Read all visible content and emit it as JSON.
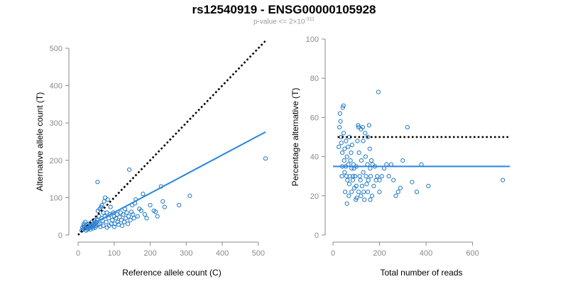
{
  "header": {
    "title": "rs12540919 - ENSG00000105928",
    "subtitle_prefix": "p-value <= 2×10",
    "subtitle_exponent": "-311"
  },
  "colors": {
    "points": "#1f78c8",
    "fit_line": "#2a86e0",
    "reference_line": "#000000",
    "axis": "#8a8a8a"
  },
  "chart_data": [
    {
      "type": "scatter",
      "xlabel": "Reference allele count (C)",
      "ylabel": "Alternative allele count (T)",
      "xlim": [
        0,
        520
      ],
      "ylim": [
        0,
        500
      ],
      "xticks": [
        0,
        100,
        200,
        300,
        400,
        500
      ],
      "yticks": [
        0,
        100,
        200,
        300,
        400,
        500
      ],
      "reference_line": {
        "style": "dotted",
        "from": [
          0,
          0
        ],
        "to": [
          520,
          520
        ]
      },
      "fit_line": {
        "style": "solid",
        "from": [
          10,
          14
        ],
        "to": [
          520,
          276
        ]
      },
      "points": [
        [
          10,
          12
        ],
        [
          12,
          20
        ],
        [
          14,
          15
        ],
        [
          15,
          25
        ],
        [
          16,
          30
        ],
        [
          18,
          22
        ],
        [
          20,
          18
        ],
        [
          20,
          35
        ],
        [
          22,
          12
        ],
        [
          24,
          20
        ],
        [
          25,
          28
        ],
        [
          26,
          15
        ],
        [
          28,
          22
        ],
        [
          30,
          18
        ],
        [
          30,
          30
        ],
        [
          32,
          25
        ],
        [
          34,
          15
        ],
        [
          35,
          20
        ],
        [
          36,
          28
        ],
        [
          38,
          35
        ],
        [
          40,
          22
        ],
        [
          40,
          30
        ],
        [
          42,
          18
        ],
        [
          44,
          25
        ],
        [
          45,
          40
        ],
        [
          46,
          30
        ],
        [
          48,
          20
        ],
        [
          50,
          25
        ],
        [
          50,
          35
        ],
        [
          52,
          40
        ],
        [
          54,
          142
        ],
        [
          55,
          65
        ],
        [
          56,
          28
        ],
        [
          58,
          50
        ],
        [
          60,
          70
        ],
        [
          60,
          30
        ],
        [
          62,
          22
        ],
        [
          64,
          75
        ],
        [
          65,
          45
        ],
        [
          66,
          80
        ],
        [
          68,
          38
        ],
        [
          70,
          60
        ],
        [
          70,
          25
        ],
        [
          72,
          90
        ],
        [
          74,
          50
        ],
        [
          75,
          100
        ],
        [
          78,
          35
        ],
        [
          80,
          60
        ],
        [
          80,
          20
        ],
        [
          82,
          95
        ],
        [
          85,
          45
        ],
        [
          86,
          25
        ],
        [
          88,
          55
        ],
        [
          90,
          75
        ],
        [
          92,
          30
        ],
        [
          95,
          40
        ],
        [
          98,
          60
        ],
        [
          100,
          50
        ],
        [
          100,
          22
        ],
        [
          102,
          30
        ],
        [
          105,
          45
        ],
        [
          108,
          55
        ],
        [
          110,
          35
        ],
        [
          112,
          28
        ],
        [
          115,
          48
        ],
        [
          118,
          60
        ],
        [
          120,
          40
        ],
        [
          122,
          25
        ],
        [
          125,
          55
        ],
        [
          128,
          35
        ],
        [
          130,
          70
        ],
        [
          132,
          45
        ],
        [
          135,
          60
        ],
        [
          138,
          30
        ],
        [
          140,
          50
        ],
        [
          142,
          175
        ],
        [
          145,
          40
        ],
        [
          148,
          62
        ],
        [
          150,
          80
        ],
        [
          152,
          55
        ],
        [
          155,
          45
        ],
        [
          158,
          85
        ],
        [
          160,
          95
        ],
        [
          165,
          50
        ],
        [
          170,
          70
        ],
        [
          175,
          65
        ],
        [
          180,
          110
        ],
        [
          185,
          55
        ],
        [
          190,
          45
        ],
        [
          200,
          80
        ],
        [
          210,
          65
        ],
        [
          215,
          62
        ],
        [
          220,
          50
        ],
        [
          230,
          130
        ],
        [
          235,
          90
        ],
        [
          240,
          75
        ],
        [
          280,
          80
        ],
        [
          310,
          105
        ],
        [
          520,
          205
        ]
      ]
    },
    {
      "type": "scatter",
      "xlabel": "Total number of reads",
      "ylabel": "Percentage alternative (T)",
      "xlim": [
        0,
        760
      ],
      "ylim": [
        0,
        100
      ],
      "xticks": [
        0,
        200,
        400,
        600
      ],
      "yticks": [
        0,
        20,
        40,
        60,
        80,
        100
      ],
      "reference_line": {
        "style": "dotted",
        "y": 50,
        "from_x": 20,
        "to_x": 760
      },
      "fit_line": {
        "style": "solid",
        "y": 35,
        "from_x": 0,
        "to_x": 760
      },
      "points": [
        [
          25,
          45
        ],
        [
          28,
          55
        ],
        [
          30,
          62
        ],
        [
          32,
          58
        ],
        [
          35,
          50
        ],
        [
          36,
          47
        ],
        [
          38,
          30
        ],
        [
          40,
          35
        ],
        [
          40,
          42
        ],
        [
          42,
          65
        ],
        [
          45,
          66
        ],
        [
          46,
          52
        ],
        [
          48,
          38
        ],
        [
          50,
          44
        ],
        [
          50,
          32
        ],
        [
          52,
          22
        ],
        [
          55,
          35
        ],
        [
          56,
          48
        ],
        [
          58,
          30
        ],
        [
          60,
          40
        ],
        [
          60,
          16
        ],
        [
          62,
          28
        ],
        [
          65,
          45
        ],
        [
          66,
          36
        ],
        [
          68,
          20
        ],
        [
          70,
          50
        ],
        [
          70,
          26
        ],
        [
          72,
          30
        ],
        [
          75,
          38
        ],
        [
          78,
          42
        ],
        [
          80,
          22
        ],
        [
          80,
          34
        ],
        [
          82,
          46
        ],
        [
          85,
          28
        ],
        [
          86,
          30
        ],
        [
          88,
          36
        ],
        [
          90,
          34
        ],
        [
          92,
          24
        ],
        [
          95,
          30
        ],
        [
          98,
          18
        ],
        [
          100,
          35
        ],
        [
          100,
          25
        ],
        [
          102,
          19
        ],
        [
          105,
          48
        ],
        [
          108,
          56
        ],
        [
          110,
          55
        ],
        [
          110,
          22
        ],
        [
          112,
          42
        ],
        [
          115,
          30
        ],
        [
          118,
          28
        ],
        [
          120,
          54
        ],
        [
          120,
          20
        ],
        [
          122,
          38
        ],
        [
          125,
          25
        ],
        [
          128,
          55
        ],
        [
          130,
          48
        ],
        [
          130,
          32
        ],
        [
          132,
          22
        ],
        [
          135,
          18
        ],
        [
          138,
          52
        ],
        [
          140,
          40
        ],
        [
          142,
          30
        ],
        [
          145,
          26
        ],
        [
          148,
          36
        ],
        [
          150,
          50
        ],
        [
          150,
          22
        ],
        [
          152,
          28
        ],
        [
          155,
          56
        ],
        [
          158,
          44
        ],
        [
          160,
          34
        ],
        [
          160,
          18
        ],
        [
          162,
          30
        ],
        [
          165,
          38
        ],
        [
          168,
          20
        ],
        [
          170,
          36
        ],
        [
          175,
          25
        ],
        [
          180,
          35
        ],
        [
          185,
          28
        ],
        [
          190,
          30
        ],
        [
          195,
          73
        ],
        [
          200,
          28
        ],
        [
          200,
          22
        ],
        [
          210,
          30
        ],
        [
          220,
          34
        ],
        [
          230,
          36
        ],
        [
          240,
          30
        ],
        [
          250,
          36
        ],
        [
          260,
          28
        ],
        [
          270,
          20
        ],
        [
          280,
          22
        ],
        [
          290,
          24
        ],
        [
          300,
          38
        ],
        [
          320,
          55
        ],
        [
          340,
          27
        ],
        [
          360,
          22
        ],
        [
          380,
          36
        ],
        [
          410,
          25
        ],
        [
          730,
          28
        ]
      ]
    }
  ]
}
